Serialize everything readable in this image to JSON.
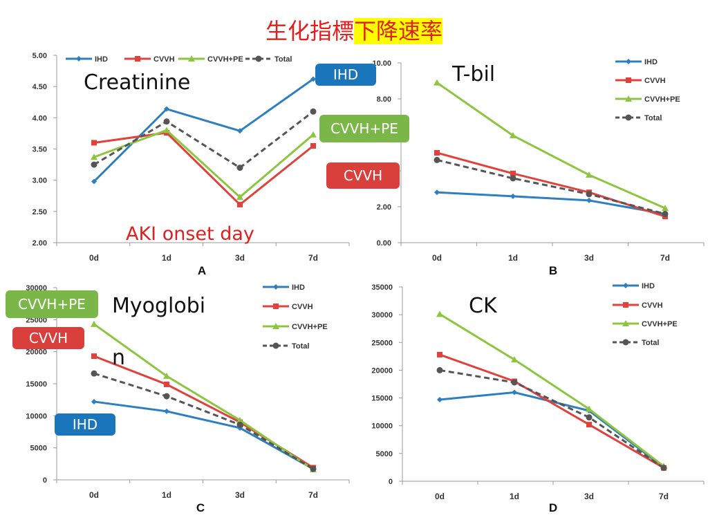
{
  "slide": {
    "title_plain": "生化指標",
    "title_highlight": "下降速率",
    "annotations": {
      "creatinine": "Creatinine",
      "tbil": "T-bil",
      "myoglobin_1": "Myoglobi",
      "myoglobin_2": "n",
      "ck": "CK",
      "aki_onset": "AKI onset day"
    },
    "tags": [
      {
        "text": "IHD",
        "color": "#1a75bb"
      },
      {
        "text": "CVVH+PE",
        "color": "#7ab648"
      },
      {
        "text": "CVVH",
        "color": "#d9403c"
      },
      {
        "text": "CVVH+PE",
        "color": "#7ab648"
      },
      {
        "text": "CVVH",
        "color": "#d9403c"
      },
      {
        "text": "IHD",
        "color": "#1a75bb"
      }
    ]
  },
  "series_colors": {
    "IHD": "#2e7fc2",
    "CVVH": "#e2413b",
    "CVVH+PE": "#8cc63e",
    "Total": "#555555"
  },
  "chart_data": [
    {
      "type": "line",
      "panel": "A",
      "categories": [
        "0d",
        "1d",
        "3d",
        "7d"
      ],
      "ylim": [
        2,
        5
      ],
      "yticks": [
        "2.00",
        "2.50",
        "3.00",
        "3.50",
        "4.00",
        "4.50",
        "5.00"
      ],
      "legend": "top",
      "series": [
        {
          "name": "IHD",
          "values": [
            2.98,
            4.14,
            3.79,
            4.62
          ]
        },
        {
          "name": "CVVH",
          "values": [
            3.6,
            3.76,
            2.61,
            3.55
          ]
        },
        {
          "name": "CVVH+PE",
          "values": [
            3.37,
            3.8,
            2.73,
            3.73
          ]
        },
        {
          "name": "Total",
          "values": [
            3.25,
            3.94,
            3.2,
            4.1
          ]
        }
      ]
    },
    {
      "type": "line",
      "panel": "B",
      "categories": [
        "0d",
        "1d",
        "3d",
        "7d"
      ],
      "ylim": [
        0,
        10
      ],
      "yticks": [
        "0.00",
        "2.00",
        "",
        "",
        "8.00",
        "10.00"
      ],
      "legend": "top-right",
      "series": [
        {
          "name": "IHD",
          "values": [
            2.8,
            2.58,
            2.35,
            1.6
          ]
        },
        {
          "name": "CVVH",
          "values": [
            5.0,
            3.85,
            2.8,
            1.46
          ]
        },
        {
          "name": "CVVH+PE",
          "values": [
            8.9,
            5.96,
            3.77,
            1.92
          ]
        },
        {
          "name": "Total",
          "values": [
            4.6,
            3.58,
            2.7,
            1.6
          ]
        }
      ]
    },
    {
      "type": "line",
      "panel": "C",
      "categories": [
        "0d",
        "1d",
        "3d",
        "7d"
      ],
      "ylim": [
        0,
        30000
      ],
      "yticks": [
        "0",
        "5000",
        "10000",
        "15000",
        "20000",
        "25000",
        "30000"
      ],
      "legend": "top-right",
      "series": [
        {
          "name": "IHD",
          "values": [
            12200,
            10700,
            8100,
            1700
          ]
        },
        {
          "name": "CVVH",
          "values": [
            19300,
            14900,
            9000,
            1900
          ]
        },
        {
          "name": "CVVH+PE",
          "values": [
            24300,
            16200,
            9300,
            1600
          ]
        },
        {
          "name": "Total",
          "values": [
            16600,
            13050,
            8600,
            1700
          ]
        }
      ]
    },
    {
      "type": "line",
      "panel": "D",
      "categories": [
        "0d",
        "1d",
        "3d",
        "7d"
      ],
      "ylim": [
        0,
        35000
      ],
      "yticks": [
        "0",
        "5000",
        "10000",
        "15000",
        "20000",
        "25000",
        "30000",
        "35000"
      ],
      "legend": "top-right",
      "series": [
        {
          "name": "IHD",
          "values": [
            14700,
            16000,
            12700,
            2500
          ]
        },
        {
          "name": "CVVH",
          "values": [
            22800,
            18000,
            10200,
            2400
          ]
        },
        {
          "name": "CVVH+PE",
          "values": [
            30100,
            21900,
            13000,
            2700
          ]
        },
        {
          "name": "Total",
          "values": [
            20000,
            17800,
            11500,
            2400
          ]
        }
      ]
    }
  ]
}
